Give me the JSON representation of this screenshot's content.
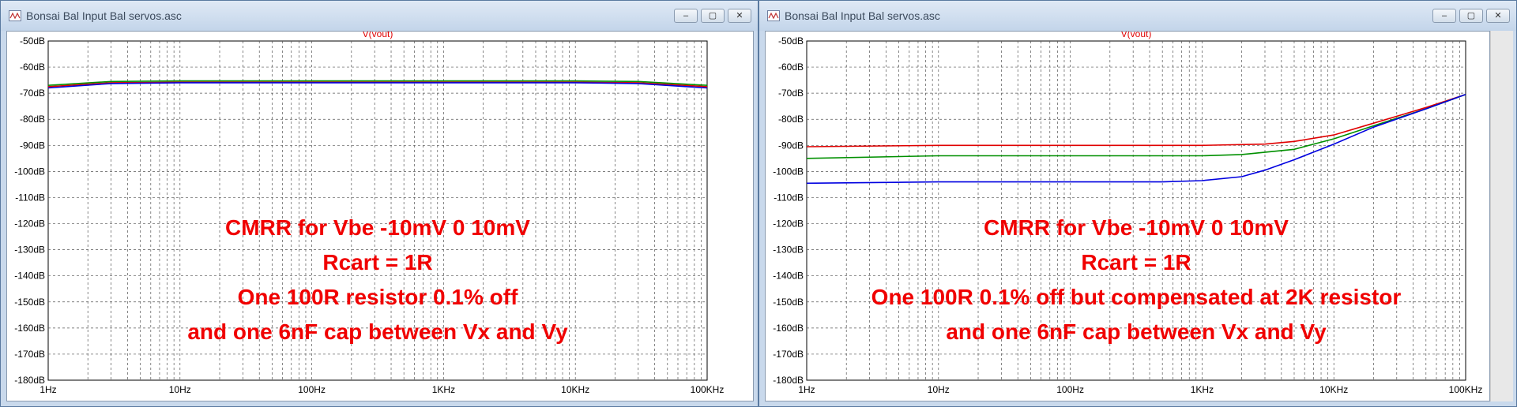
{
  "windows": [
    {
      "title": "Bonsai Bal Input Bal servos.asc",
      "trace_label": "V(vout)",
      "annotation": [
        "CMRR for Vbe -10mV 0 10mV",
        "Rcart = 1R",
        "One 100R resistor 0.1% off",
        "and one 6nF cap between Vx and Vy"
      ]
    },
    {
      "title": "Bonsai Bal Input Bal servos.asc",
      "trace_label": "V(vout)",
      "annotation": [
        "CMRR for Vbe -10mV 0 10mV",
        "Rcart = 1R",
        "One 100R 0.1% off but compensated at 2K resistor",
        "and one 6nF cap between Vx and Vy"
      ]
    }
  ],
  "window_controls": {
    "minimize": "–",
    "maximize": "▢",
    "close": "✕"
  },
  "chart_data": [
    {
      "type": "line",
      "xscale": "log",
      "xlim": [
        1,
        100000
      ],
      "ylim": [
        -180,
        -50
      ],
      "yticks": [
        "-50dB",
        "-60dB",
        "-70dB",
        "-80dB",
        "-90dB",
        "-100dB",
        "-110dB",
        "-120dB",
        "-130dB",
        "-140dB",
        "-150dB",
        "-160dB",
        "-170dB",
        "-180dB"
      ],
      "xticks": [
        "1Hz",
        "10Hz",
        "100Hz",
        "1KHz",
        "10KHz",
        "100KHz"
      ],
      "grid": true,
      "series": [
        {
          "color": "#e00000",
          "x": [
            1,
            3,
            10,
            100,
            1000,
            10000,
            30000,
            100000
          ],
          "y": [
            -67.5,
            -66,
            -65.8,
            -65.8,
            -65.8,
            -65.8,
            -66,
            -67.5
          ]
        },
        {
          "color": "#009000",
          "x": [
            1,
            3,
            10,
            100,
            1000,
            10000,
            30000,
            100000
          ],
          "y": [
            -67,
            -65.5,
            -65.3,
            -65.3,
            -65.3,
            -65.3,
            -65.5,
            -67
          ]
        },
        {
          "color": "#0000e0",
          "x": [
            1,
            3,
            10,
            100,
            1000,
            10000,
            30000,
            100000
          ],
          "y": [
            -68,
            -66.3,
            -66,
            -66,
            -66,
            -66,
            -66.3,
            -68
          ]
        }
      ]
    },
    {
      "type": "line",
      "xscale": "log",
      "xlim": [
        1,
        100000
      ],
      "ylim": [
        -180,
        -50
      ],
      "yticks": [
        "-50dB",
        "-60dB",
        "-70dB",
        "-80dB",
        "-90dB",
        "-100dB",
        "-110dB",
        "-120dB",
        "-130dB",
        "-140dB",
        "-150dB",
        "-160dB",
        "-170dB",
        "-180dB"
      ],
      "xticks": [
        "1Hz",
        "10Hz",
        "100Hz",
        "1KHz",
        "10KHz",
        "100KHz"
      ],
      "grid": true,
      "series": [
        {
          "color": "#e00000",
          "x": [
            1,
            10,
            100,
            1000,
            3000,
            5000,
            10000,
            20000,
            50000,
            100000
          ],
          "y": [
            -90.5,
            -90,
            -90,
            -90,
            -89.5,
            -88.5,
            -86,
            -81.5,
            -75.5,
            -70.5
          ]
        },
        {
          "color": "#009000",
          "x": [
            1,
            10,
            100,
            1000,
            2000,
            5000,
            10000,
            20000,
            50000,
            100000
          ],
          "y": [
            -95,
            -94,
            -94,
            -94,
            -93.5,
            -91.5,
            -87.5,
            -82.5,
            -76,
            -70.5
          ]
        },
        {
          "color": "#0000e0",
          "x": [
            1,
            10,
            100,
            500,
            1000,
            2000,
            3000,
            5000,
            10000,
            20000,
            50000,
            100000
          ],
          "y": [
            -104.5,
            -104,
            -104,
            -104,
            -103.5,
            -102,
            -99.5,
            -95.5,
            -89.5,
            -83,
            -76,
            -70.5
          ]
        }
      ]
    }
  ]
}
